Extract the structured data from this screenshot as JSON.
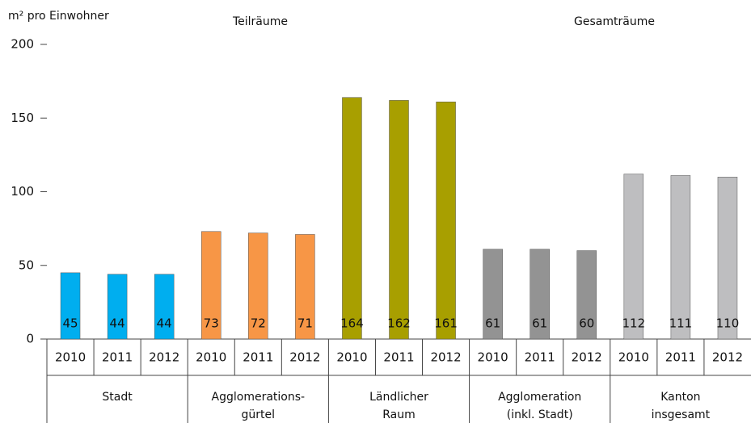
{
  "chart_data": {
    "type": "bar",
    "y_label": "m² pro Einwohner",
    "annotations": [
      "Teilräume",
      "Gesamträume"
    ],
    "categories": [
      "2010",
      "2011",
      "2012"
    ],
    "series": [
      {
        "name": "Stadt",
        "color": "#00aeef",
        "values": [
          45,
          44,
          44
        ]
      },
      {
        "name": "Agglomerations-\ngürtel",
        "color": "#f79646",
        "values": [
          73,
          72,
          71
        ]
      },
      {
        "name": "Ländlicher\nRaum",
        "color": "#a89f00",
        "values": [
          164,
          162,
          161
        ]
      },
      {
        "name": "Agglomeration\n(inkl. Stadt)",
        "color": "#939393",
        "values": [
          61,
          61,
          60
        ]
      },
      {
        "name": "Kanton\ninsgesamt",
        "color": "#bebec0",
        "values": [
          112,
          111,
          110
        ]
      }
    ],
    "ylim": [
      0,
      200
    ],
    "yticks": [
      0,
      50,
      100,
      150,
      200
    ],
    "grid": false
  }
}
